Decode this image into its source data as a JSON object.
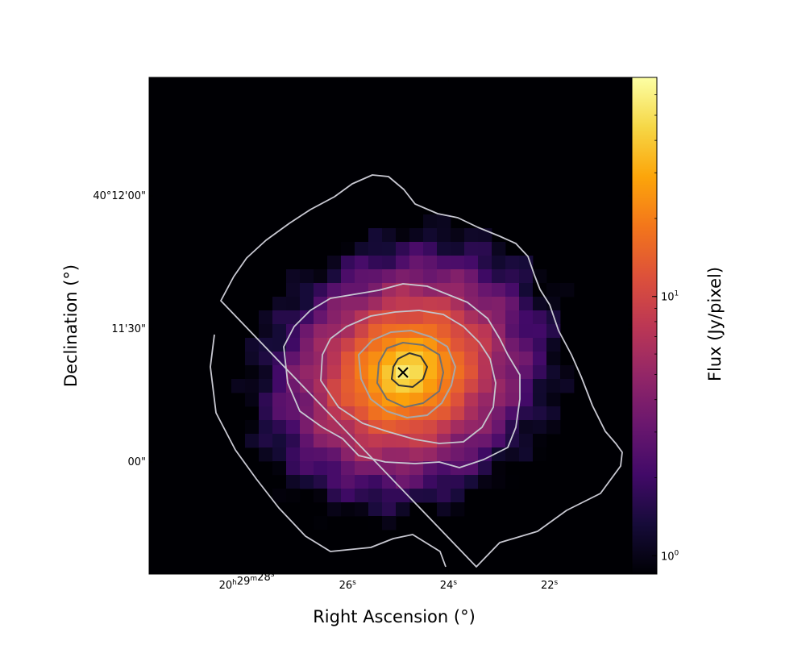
{
  "chart_data": {
    "type": "heatmap",
    "colormap": "inferno",
    "color_scale": "log",
    "xlabel": "Right Ascension (°)",
    "ylabel": "Declination (°)",
    "colorbar_label": "Flux (Jy/pixel)",
    "x_ticks": [
      {
        "text": "20h29m28s",
        "sec": 28
      },
      {
        "text": "26s",
        "sec": 26
      },
      {
        "text": "24s",
        "sec": 24
      },
      {
        "text": "22s",
        "sec": 22
      }
    ],
    "y_ticks": [
      {
        "text": "40°12'00\"",
        "arcsec": 0
      },
      {
        "text": "11'30\"",
        "arcsec": -30
      },
      {
        "text": "00\"",
        "arcsec": -60
      }
    ],
    "colorbar_ticks": [
      {
        "base": "10",
        "exp": "1",
        "value": 10
      },
      {
        "base": "10",
        "exp": "0",
        "value": 1
      }
    ],
    "colorbar_range": [
      0.85,
      70
    ],
    "peak_marker": "x-icon",
    "contour_colors": [
      "#c8c8d2",
      "#c8c8d2",
      "#c4c4cc",
      "#a8a8a8",
      "#707070",
      "#333333"
    ]
  }
}
